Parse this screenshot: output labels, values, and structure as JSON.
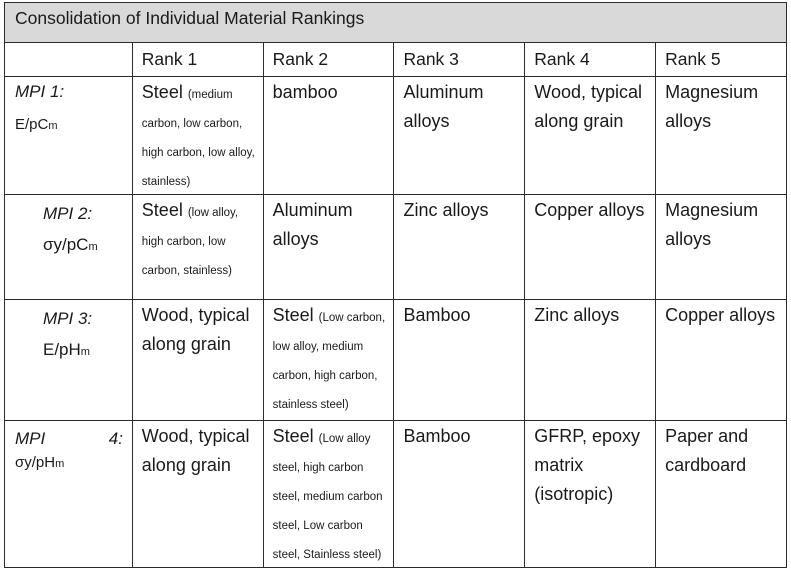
{
  "table": {
    "title": "Consolidation of Individual Material Rankings",
    "headers": [
      "Rank 1",
      "Rank 2",
      "Rank 3",
      "Rank 4",
      "Rank 5"
    ],
    "rows": [
      {
        "mpi": "MPI 1",
        "metric_base": "E/pC",
        "metric_sub": "m",
        "cells": [
          {
            "main": "Steel",
            "detail": "(medium carbon, low carbon, high carbon, low alloy, stainless)"
          },
          {
            "main": "bamboo",
            "detail": ""
          },
          {
            "main": "Aluminum alloys",
            "detail": ""
          },
          {
            "main": "Wood, typical along grain",
            "detail": ""
          },
          {
            "main": "Magnesium alloys",
            "detail": ""
          }
        ]
      },
      {
        "mpi": "MPI 2",
        "metric_base": "σy/pC",
        "metric_sub": "m",
        "cells": [
          {
            "main": "Steel",
            "detail": "(low alloy, high carbon, low carbon, stainless)"
          },
          {
            "main": "Aluminum alloys",
            "detail": ""
          },
          {
            "main": "Zinc alloys",
            "detail": ""
          },
          {
            "main": "Copper alloys",
            "detail": ""
          },
          {
            "main": "Magnesium alloys",
            "detail": ""
          }
        ]
      },
      {
        "mpi": "MPI 3",
        "metric_base": "E/pH",
        "metric_sub": "m",
        "cells": [
          {
            "main": "Wood, typical along grain",
            "detail": ""
          },
          {
            "main": "Steel",
            "detail": "(Low carbon, low alloy, medium carbon, high carbon, stainless steel)"
          },
          {
            "main": "Bamboo",
            "detail": ""
          },
          {
            "main": "Zinc alloys",
            "detail": ""
          },
          {
            "main": "Copper alloys",
            "detail": ""
          }
        ]
      },
      {
        "mpi": "MPI",
        "mpi_number": "4",
        "metric_base": "σy/pH",
        "metric_sub": "m",
        "cells": [
          {
            "main": "Wood, typical along grain",
            "detail": ""
          },
          {
            "main": "Steel",
            "detail": "(Low alloy steel, high carbon steel, medium carbon steel, Low carbon steel, Stainless steel)"
          },
          {
            "main": "Bamboo",
            "detail": ""
          },
          {
            "main": "GFRP, epoxy matrix (isotropic)",
            "detail": ""
          },
          {
            "main": "Paper and cardboard",
            "detail": ""
          }
        ]
      }
    ]
  }
}
